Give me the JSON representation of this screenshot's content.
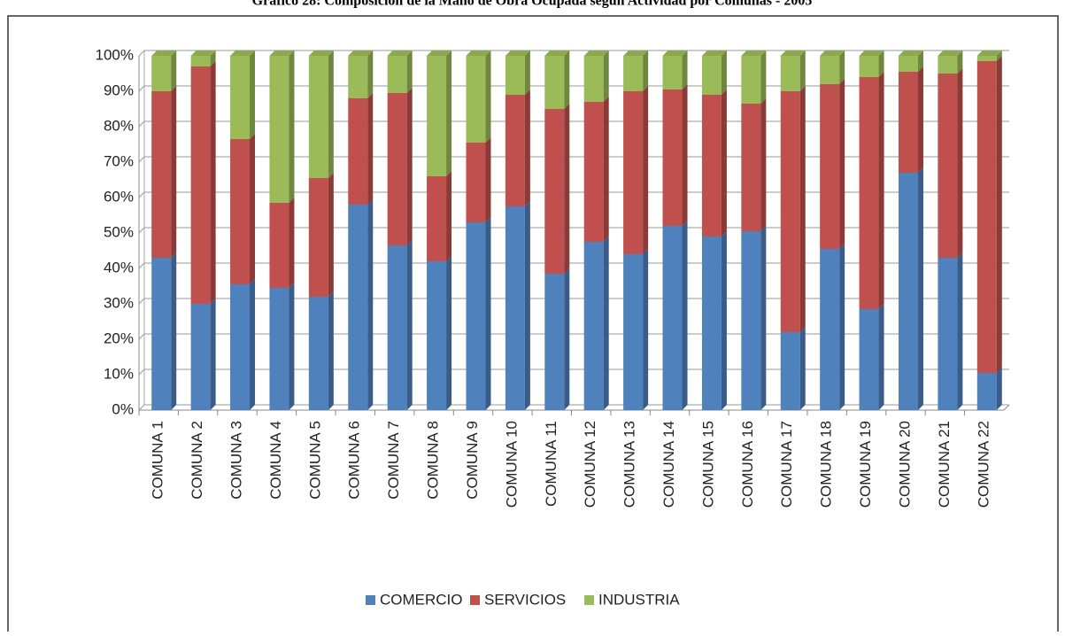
{
  "chart_data": {
    "type": "stacked_bar",
    "title": "Gráfico 28: Composición de la Mano de Obra Ocupada según Actividad por Comunas - 2005",
    "categories": [
      "COMUNA 1",
      "COMUNA 2",
      "COMUNA 3",
      "COMUNA 4",
      "COMUNA 5",
      "COMUNA 6",
      "COMUNA 7",
      "COMUNA 8",
      "COMUNA 9",
      "COMUNA 10",
      "COMUNA 11",
      "COMUNA 12",
      "COMUNA 13",
      "COMUNA 14",
      "COMUNA 15",
      "COMUNA 16",
      "COMUNA 17",
      "COMUNA 18",
      "COMUNA 19",
      "COMUNA 20",
      "COMUNA 21",
      "COMUNA 22"
    ],
    "series": [
      {
        "name": "COMERCIO",
        "color": "#4f81bd",
        "values": [
          43,
          30,
          35.5,
          34.5,
          32,
          58,
          46.5,
          42,
          53,
          57.5,
          38.5,
          47.5,
          44,
          52,
          49,
          50.5,
          22,
          45.5,
          28.5,
          67,
          43,
          10.5
        ]
      },
      {
        "name": "SERVICIOS",
        "color": "#c0504d",
        "values": [
          47,
          67,
          41,
          24,
          33.5,
          30,
          43,
          24,
          22.5,
          31.5,
          46.5,
          39.5,
          46,
          38.5,
          40,
          36,
          68,
          46.5,
          65.5,
          28.5,
          52,
          88
        ]
      },
      {
        "name": "INDUSTRIA",
        "color": "#9bbb59",
        "values": [
          10,
          3,
          23.5,
          41.5,
          34.5,
          12,
          10.5,
          34,
          24.5,
          11,
          15,
          13,
          10,
          9.5,
          11,
          13.5,
          10,
          8,
          6,
          4.5,
          5,
          1.5
        ]
      }
    ],
    "ylim": [
      0,
      100
    ],
    "yticks": [
      {
        "value": 0,
        "label": "0%"
      },
      {
        "value": 10,
        "label": "10%"
      },
      {
        "value": 20,
        "label": "20%"
      },
      {
        "value": 30,
        "label": "30%"
      },
      {
        "value": 40,
        "label": "40%"
      },
      {
        "value": 50,
        "label": "50%"
      },
      {
        "value": 60,
        "label": "60%"
      },
      {
        "value": 70,
        "label": "70%"
      },
      {
        "value": 80,
        "label": "80%"
      },
      {
        "value": 90,
        "label": "90%"
      },
      {
        "value": 100,
        "label": "100%"
      }
    ],
    "grid": true,
    "legend": "bottom"
  }
}
